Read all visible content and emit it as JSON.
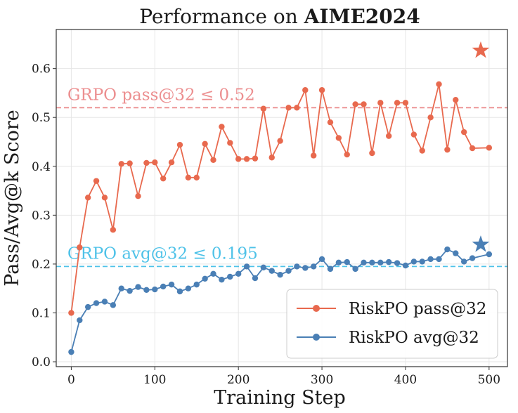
{
  "chart_data": {
    "type": "line",
    "title_regular": "Performance on ",
    "title_bold": "AIME2024",
    "xlabel": "Training Step",
    "ylabel": "Pass/Avg@k Score",
    "xlim": [
      -18,
      522
    ],
    "ylim": [
      -0.01,
      0.68
    ],
    "xticks": [
      0,
      100,
      200,
      300,
      400,
      500
    ],
    "yticks": [
      0.0,
      0.1,
      0.2,
      0.3,
      0.4,
      0.5,
      0.6
    ],
    "ytick_labels": [
      "0.0",
      "0.1",
      "0.2",
      "0.3",
      "0.4",
      "0.5",
      "0.6"
    ],
    "grid": true,
    "legend_position": "bottom-right",
    "colors": {
      "pass": "#e8694e",
      "avg": "#4a7fb5",
      "pass_ref": "#ec8f90",
      "avg_ref": "#4ec2e8"
    },
    "x": [
      0,
      10,
      20,
      30,
      40,
      50,
      60,
      70,
      80,
      90,
      100,
      110,
      120,
      130,
      140,
      150,
      160,
      170,
      180,
      190,
      200,
      210,
      220,
      230,
      240,
      250,
      260,
      270,
      280,
      290,
      300,
      310,
      320,
      330,
      340,
      350,
      360,
      370,
      380,
      390,
      400,
      410,
      420,
      430,
      440,
      450,
      460,
      470,
      480,
      490,
      500
    ],
    "series": [
      {
        "name": "RiskPO pass@32",
        "key": "pass",
        "values": [
          0.1,
          0.234,
          0.336,
          0.37,
          0.336,
          0.27,
          0.405,
          0.406,
          0.339,
          0.407,
          0.408,
          0.375,
          0.408,
          0.444,
          0.377,
          0.377,
          0.446,
          0.413,
          0.481,
          0.448,
          0.415,
          0.415,
          0.416,
          0.518,
          0.418,
          0.452,
          0.52,
          0.52,
          0.556,
          0.422,
          0.556,
          0.49,
          0.458,
          0.424,
          0.527,
          0.527,
          0.427,
          0.53,
          0.462,
          0.53,
          0.53,
          0.465,
          0.432,
          0.5,
          0.568,
          0.434,
          0.536,
          0.47,
          0.437,
          null,
          0.438
        ]
      },
      {
        "name": "RiskPO avg@32",
        "key": "avg",
        "values": [
          0.02,
          0.085,
          0.112,
          0.12,
          0.123,
          0.116,
          0.15,
          0.145,
          0.153,
          0.147,
          0.148,
          0.154,
          0.158,
          0.144,
          0.15,
          0.158,
          0.17,
          0.18,
          0.168,
          0.174,
          0.18,
          0.195,
          0.171,
          0.193,
          0.186,
          0.178,
          0.186,
          0.195,
          0.192,
          0.195,
          0.21,
          0.19,
          0.203,
          0.204,
          0.19,
          0.203,
          0.203,
          0.203,
          0.204,
          0.202,
          0.197,
          0.205,
          0.205,
          0.21,
          0.21,
          0.23,
          0.222,
          0.205,
          0.212,
          null,
          0.22
        ]
      }
    ],
    "best_points": [
      {
        "series": "pass",
        "x": 490,
        "y": 0.637
      },
      {
        "series": "avg",
        "x": 490,
        "y": 0.24
      }
    ],
    "reference_lines": [
      {
        "key": "pass_ref",
        "y": 0.52,
        "label": "GRPO pass@32 ≤ 0.52"
      },
      {
        "key": "avg_ref",
        "y": 0.195,
        "label": "GRPO avg@32 ≤ 0.195"
      }
    ]
  }
}
